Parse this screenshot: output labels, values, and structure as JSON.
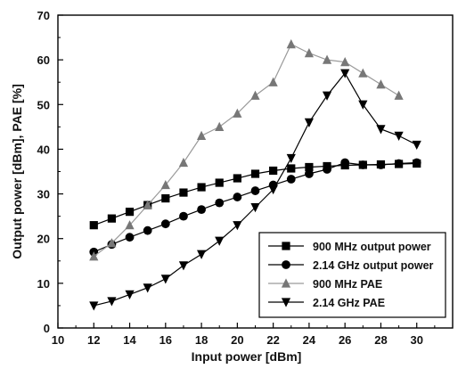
{
  "chart_data": {
    "type": "line",
    "title": "",
    "xlabel": "Input power [dBm]",
    "ylabel": "Output power [dBm], PAE [%]",
    "xlim": [
      10,
      32
    ],
    "ylim": [
      0,
      70
    ],
    "xticks": [
      10,
      12,
      14,
      16,
      18,
      20,
      22,
      24,
      26,
      28,
      30
    ],
    "yticks": [
      0,
      10,
      20,
      30,
      40,
      50,
      60,
      70
    ],
    "grid": false,
    "legend_position": "bottom-right",
    "series": [
      {
        "name": "900 MHz output power",
        "marker": "square",
        "color": "#000000",
        "line_color": "#000000",
        "x": [
          12,
          13,
          14,
          15,
          16,
          17,
          18,
          19,
          20,
          21,
          22,
          23,
          24,
          25,
          26,
          27,
          28,
          29,
          30
        ],
        "y": [
          23,
          24.5,
          26,
          27.5,
          29,
          30.3,
          31.5,
          32.5,
          33.5,
          34.5,
          35.2,
          35.7,
          36,
          36.2,
          36.4,
          36.5,
          36.6,
          36.7,
          36.8
        ]
      },
      {
        "name": "2.14 GHz output power",
        "marker": "circle",
        "color": "#000000",
        "line_color": "#000000",
        "x": [
          12,
          13,
          14,
          15,
          16,
          17,
          18,
          19,
          20,
          21,
          22,
          23,
          24,
          25,
          26,
          27,
          28,
          29,
          30
        ],
        "y": [
          17,
          18.7,
          20.3,
          21.8,
          23.3,
          25,
          26.5,
          28,
          29.3,
          30.7,
          32,
          33.3,
          34.5,
          35.5,
          37,
          36.5,
          36.5,
          36.8,
          37
        ]
      },
      {
        "name": "900 MHz PAE",
        "marker": "triangle-up",
        "color": "#777777",
        "line_color": "#9a9a9a",
        "x": [
          12,
          13,
          14,
          15,
          16,
          17,
          18,
          19,
          20,
          21,
          22,
          23,
          24,
          25,
          26,
          27,
          28,
          29
        ],
        "y": [
          16,
          19,
          23,
          27.5,
          32,
          37,
          43,
          45,
          48,
          52,
          55,
          63.5,
          61.5,
          60,
          59.5,
          57,
          54.5,
          52
        ]
      },
      {
        "name": "2.14 GHz PAE",
        "marker": "triangle-down",
        "color": "#000000",
        "line_color": "#000000",
        "x": [
          12,
          13,
          14,
          15,
          16,
          17,
          18,
          19,
          20,
          21,
          22,
          23,
          24,
          25,
          26,
          27,
          28,
          29,
          30
        ],
        "y": [
          5,
          6,
          7.5,
          9,
          11,
          14,
          16.5,
          19.5,
          23,
          27,
          31,
          38,
          46,
          52,
          57,
          50,
          44.5,
          43,
          41
        ]
      }
    ]
  }
}
